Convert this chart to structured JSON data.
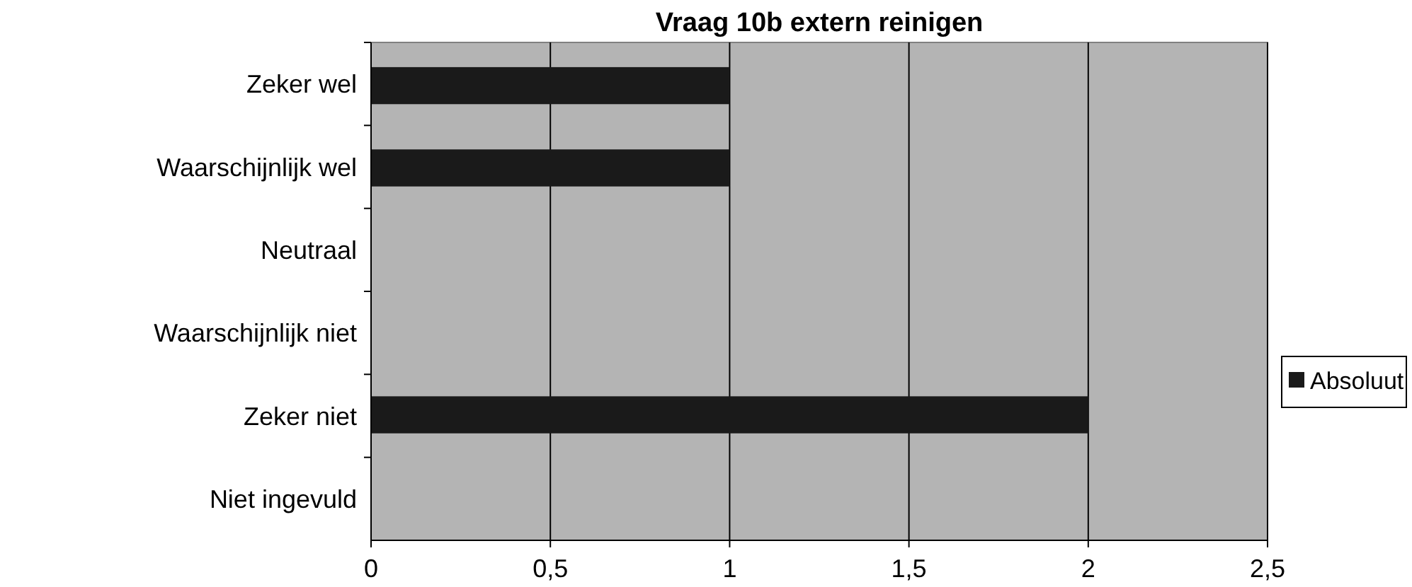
{
  "chart_data": {
    "type": "bar",
    "orientation": "horizontal",
    "title": "Vraag 10b extern reinigen",
    "categories": [
      "Zeker wel",
      "Waarschijnlijk wel",
      "Neutraal",
      "Waarschijnlijk niet",
      "Zeker niet",
      "Niet ingevuld"
    ],
    "series": [
      {
        "name": "Absoluut",
        "color": "#1a1a1a",
        "values": [
          1,
          1,
          0,
          0,
          2,
          0
        ]
      }
    ],
    "xlim": [
      0,
      2.5
    ],
    "xticks": [
      0,
      {
        "value": 0.5,
        "label": "0,5"
      },
      1,
      {
        "value": 1.5,
        "label": "1,5"
      },
      2,
      {
        "value": 2.5,
        "label": "2,5"
      }
    ],
    "grid": "x",
    "legend": "right"
  }
}
